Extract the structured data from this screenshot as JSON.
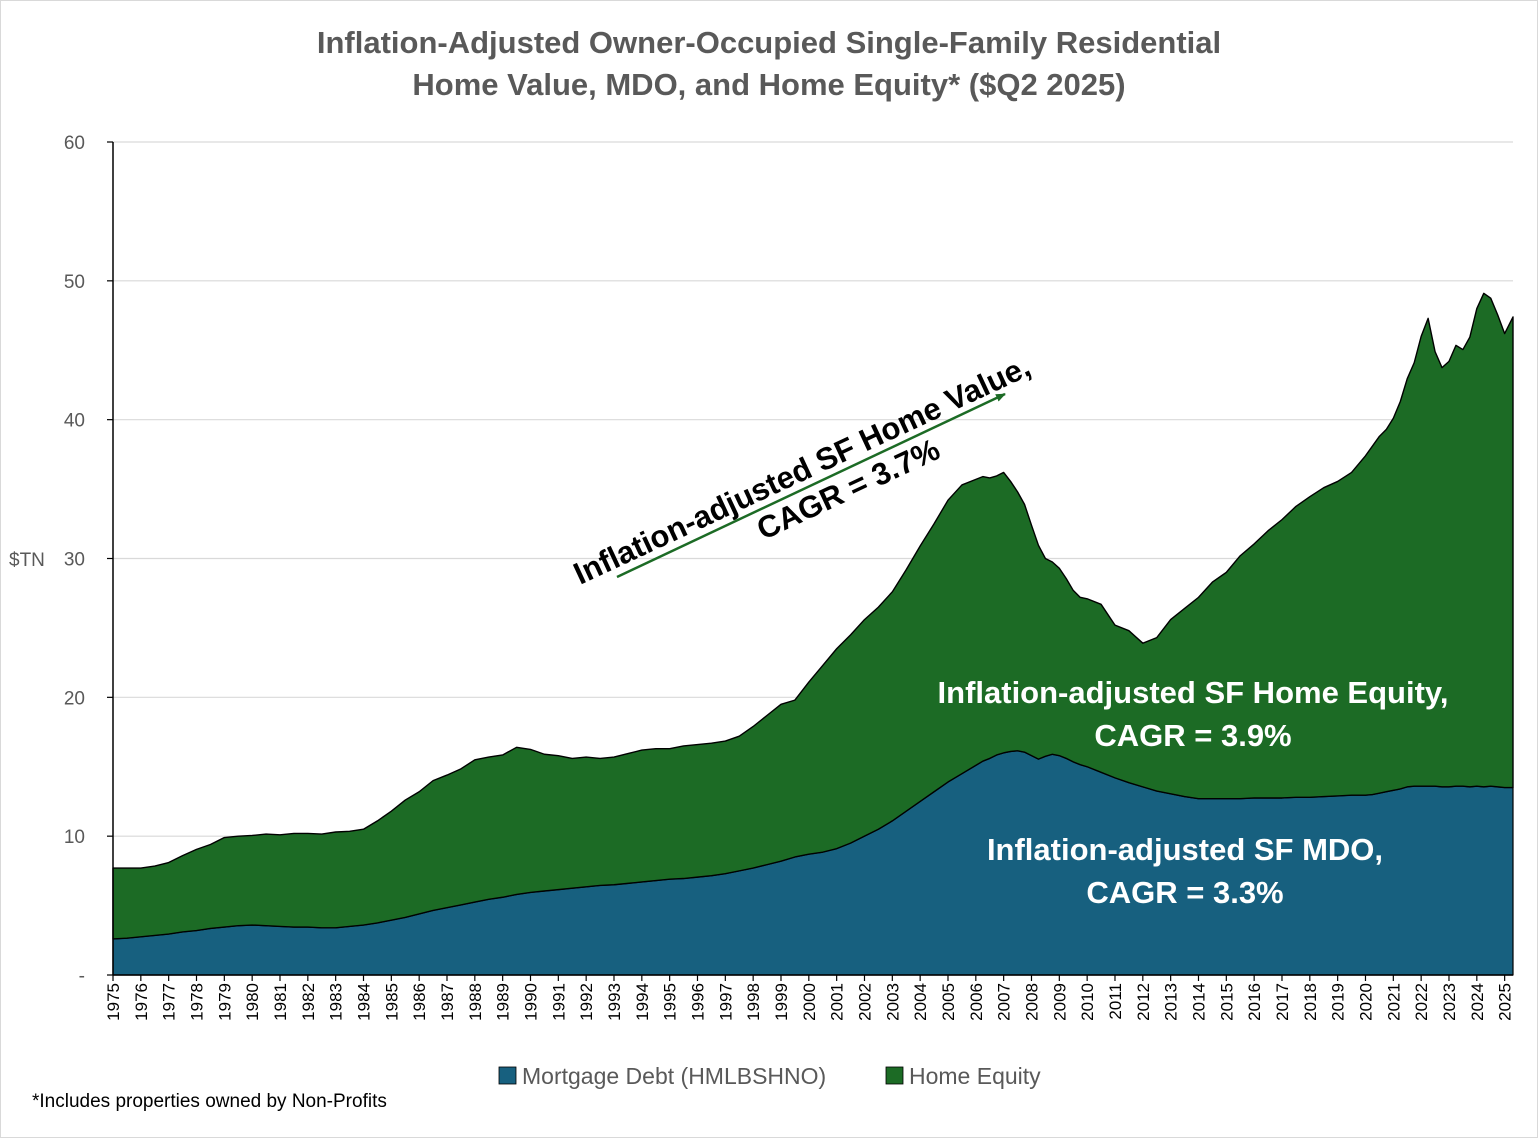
{
  "chart_data": {
    "type": "area",
    "stacked": true,
    "title_lines": [
      "Inflation-Adjusted Owner-Occupied Single-Family Residential",
      "Home Value, MDO, and Home Equity* ($Q2 2025)"
    ],
    "ylabel": "$TN",
    "ylim": [
      0,
      60
    ],
    "yticks": [
      0,
      10,
      20,
      30,
      40,
      50,
      60
    ],
    "ytick_labels": [
      "-",
      "10",
      "20",
      "30",
      "40",
      "50",
      "60"
    ],
    "xlim": [
      1975,
      2025.3
    ],
    "xtick_labels": [
      "1975",
      "1976",
      "1977",
      "1978",
      "1979",
      "1980",
      "1981",
      "1982",
      "1983",
      "1984",
      "1985",
      "1986",
      "1987",
      "1988",
      "1989",
      "1990",
      "1991",
      "1992",
      "1993",
      "1994",
      "1995",
      "1996",
      "1997",
      "1998",
      "1999",
      "2000",
      "2001",
      "2002",
      "2003",
      "2004",
      "2005",
      "2006",
      "2007",
      "2008",
      "2009",
      "2010",
      "2011",
      "2012",
      "2013",
      "2014",
      "2015",
      "2016",
      "2017",
      "2018",
      "2019",
      "2020",
      "2021",
      "2022",
      "2023",
      "2024",
      "2025"
    ],
    "x": [
      1975,
      1975.5,
      1976,
      1976.5,
      1977,
      1977.5,
      1978,
      1978.5,
      1979,
      1979.5,
      1980,
      1980.5,
      1981,
      1981.5,
      1982,
      1982.5,
      1983,
      1983.5,
      1984,
      1984.5,
      1985,
      1985.5,
      1986,
      1986.5,
      1987,
      1987.5,
      1988,
      1988.5,
      1989,
      1989.5,
      1990,
      1990.5,
      1991,
      1991.5,
      1992,
      1992.5,
      1993,
      1993.5,
      1994,
      1994.5,
      1995,
      1995.5,
      1996,
      1996.5,
      1997,
      1997.5,
      1998,
      1998.5,
      1999,
      1999.5,
      2000,
      2000.5,
      2001,
      2001.5,
      2002,
      2002.5,
      2003,
      2003.5,
      2004,
      2004.5,
      2005,
      2005.5,
      2006,
      2006.25,
      2006.5,
      2006.75,
      2007,
      2007.25,
      2007.5,
      2007.75,
      2008,
      2008.25,
      2008.5,
      2008.75,
      2009,
      2009.25,
      2009.5,
      2009.75,
      2010,
      2010.5,
      2011,
      2011.5,
      2012,
      2012.5,
      2013,
      2013.5,
      2014,
      2014.5,
      2015,
      2015.5,
      2016,
      2016.5,
      2017,
      2017.5,
      2018,
      2018.5,
      2019,
      2019.5,
      2020,
      2020.25,
      2020.5,
      2020.75,
      2021,
      2021.25,
      2021.5,
      2021.75,
      2022,
      2022.25,
      2022.5,
      2022.75,
      2023,
      2023.25,
      2023.5,
      2023.75,
      2024,
      2024.25,
      2024.5,
      2024.75,
      2025,
      2025.3
    ],
    "series": [
      {
        "name": "Mortgage Debt (HMLBSHNO)",
        "color": "#17607f",
        "values": [
          2.6,
          2.65,
          2.75,
          2.85,
          2.95,
          3.1,
          3.2,
          3.35,
          3.45,
          3.55,
          3.6,
          3.55,
          3.5,
          3.45,
          3.45,
          3.4,
          3.4,
          3.5,
          3.6,
          3.75,
          3.95,
          4.15,
          4.4,
          4.65,
          4.85,
          5.05,
          5.25,
          5.45,
          5.6,
          5.8,
          5.95,
          6.05,
          6.15,
          6.25,
          6.35,
          6.45,
          6.5,
          6.6,
          6.7,
          6.8,
          6.9,
          6.95,
          7.05,
          7.15,
          7.3,
          7.5,
          7.7,
          7.95,
          8.2,
          8.5,
          8.7,
          8.85,
          9.1,
          9.5,
          10.0,
          10.5,
          11.1,
          11.8,
          12.5,
          13.2,
          13.9,
          14.5,
          15.1,
          15.4,
          15.6,
          15.85,
          16.0,
          16.1,
          16.15,
          16.05,
          15.8,
          15.55,
          15.75,
          15.9,
          15.8,
          15.6,
          15.35,
          15.15,
          15.0,
          14.6,
          14.2,
          13.85,
          13.55,
          13.25,
          13.05,
          12.85,
          12.7,
          12.7,
          12.7,
          12.7,
          12.75,
          12.75,
          12.75,
          12.8,
          12.8,
          12.85,
          12.9,
          12.95,
          12.95,
          13.0,
          13.1,
          13.2,
          13.3,
          13.4,
          13.55,
          13.6,
          13.6,
          13.6,
          13.6,
          13.55,
          13.55,
          13.6,
          13.6,
          13.55,
          13.6,
          13.55,
          13.6,
          13.55,
          13.5,
          13.5
        ]
      },
      {
        "name": "Home Equity",
        "color": "#1c6b25",
        "values": [
          5.1,
          5.05,
          4.95,
          5.0,
          5.15,
          5.5,
          5.85,
          6.05,
          6.45,
          6.45,
          6.45,
          6.6,
          6.6,
          6.75,
          6.75,
          6.75,
          6.9,
          6.85,
          6.9,
          7.35,
          7.85,
          8.45,
          8.8,
          9.35,
          9.55,
          9.8,
          10.25,
          10.25,
          10.25,
          10.6,
          10.3,
          9.85,
          9.65,
          9.35,
          9.35,
          9.15,
          9.2,
          9.35,
          9.5,
          9.5,
          9.4,
          9.55,
          9.55,
          9.55,
          9.55,
          9.7,
          10.2,
          10.75,
          11.3,
          11.3,
          12.4,
          13.45,
          14.4,
          15.0,
          15.6,
          16.0,
          16.5,
          17.4,
          18.4,
          19.3,
          20.3,
          20.8,
          20.6,
          20.5,
          20.2,
          20.1,
          20.2,
          19.45,
          18.65,
          17.85,
          16.6,
          15.4,
          14.25,
          13.85,
          13.5,
          12.95,
          12.35,
          12.05,
          12.1,
          12.1,
          11.0,
          10.95,
          10.35,
          11.05,
          12.55,
          13.55,
          14.5,
          15.6,
          16.3,
          17.5,
          18.3,
          19.25,
          20.05,
          20.95,
          21.65,
          22.25,
          22.65,
          23.25,
          24.45,
          25.1,
          25.7,
          26.1,
          26.8,
          27.9,
          29.4,
          30.5,
          32.4,
          33.7,
          31.3,
          30.2,
          30.65,
          31.75,
          31.45,
          32.4,
          34.4,
          35.55,
          35.15,
          34.0,
          32.7,
          33.9
        ]
      }
    ],
    "annotations": {
      "home_value": [
        "Inflation-adjusted SF Home Value,",
        "CAGR = 3.7%"
      ],
      "home_equity": [
        "Inflation-adjusted SF Home Equity,",
        "CAGR = 3.9%"
      ],
      "mdo": [
        "Inflation-adjusted SF MDO,",
        "CAGR = 3.3%"
      ]
    },
    "arrow_color": "#1c6b25",
    "legend_position": "bottom",
    "grid": "horizontal",
    "grid_color": "#d9d9d9"
  },
  "footnote": "*Includes properties owned by Non-Profits"
}
